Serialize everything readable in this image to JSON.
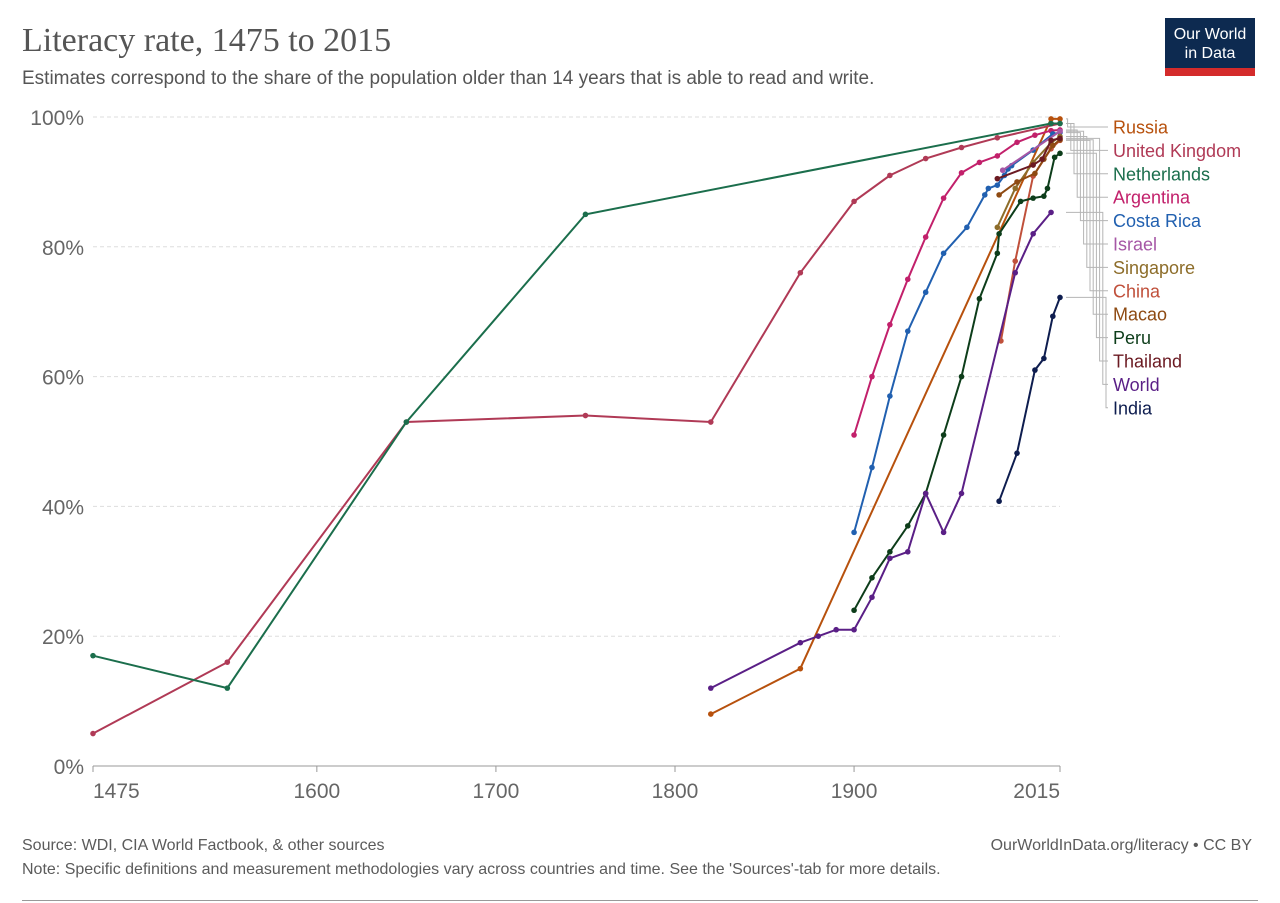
{
  "header": {
    "title": "Literacy rate, 1475 to 2015",
    "subtitle": "Estimates correspond to the share of the population older than 14 years that is able to read and write.",
    "logo_line1": "Our World",
    "logo_line2": "in Data"
  },
  "footer": {
    "source": "Source: WDI, CIA World Factbook, & other sources",
    "note": "Note: Specific definitions and measurement methodologies vary across countries and time. See the 'Sources'-tab for more details.",
    "credit": "OurWorldInData.org/literacy • CC BY"
  },
  "chart_data": {
    "type": "line",
    "title": "Literacy rate, 1475 to 2015",
    "xlabel": "",
    "ylabel": "",
    "xlim": [
      1475,
      2015
    ],
    "ylim": [
      0,
      100
    ],
    "x_ticks": [
      1475,
      1600,
      1700,
      1800,
      1900,
      2015
    ],
    "y_ticks": [
      0,
      20,
      40,
      60,
      80,
      100
    ],
    "y_tick_suffix": "%",
    "grid": "horizontal dashed",
    "legend": "right, labels at line ends",
    "series": [
      {
        "name": "Russia",
        "color": "#b7510d",
        "points": [
          [
            1820,
            8
          ],
          [
            1870,
            15
          ],
          [
            2010,
            99.7
          ],
          [
            2015,
            99.7
          ]
        ]
      },
      {
        "name": "United Kingdom",
        "color": "#b03a56",
        "points": [
          [
            1475,
            5
          ],
          [
            1550,
            16
          ],
          [
            1650,
            53
          ],
          [
            1750,
            54
          ],
          [
            1820,
            53
          ],
          [
            1870,
            76
          ],
          [
            1900,
            87
          ],
          [
            1920,
            91
          ],
          [
            1940,
            93.6
          ],
          [
            1960,
            95.3
          ],
          [
            1980,
            96.8
          ],
          [
            2015,
            99
          ]
        ]
      },
      {
        "name": "Netherlands",
        "color": "#1b6e4c",
        "points": [
          [
            1475,
            17
          ],
          [
            1550,
            12
          ],
          [
            1650,
            53
          ],
          [
            1750,
            85
          ],
          [
            2010,
            99
          ],
          [
            2015,
            99
          ]
        ]
      },
      {
        "name": "Argentina",
        "color": "#c2206b",
        "points": [
          [
            1900,
            51
          ],
          [
            1910,
            60
          ],
          [
            1920,
            68
          ],
          [
            1930,
            75
          ],
          [
            1940,
            81.5
          ],
          [
            1950,
            87.5
          ],
          [
            1960,
            91.4
          ],
          [
            1970,
            93
          ],
          [
            1980,
            94
          ],
          [
            1991,
            96.1
          ],
          [
            2001,
            97.2
          ],
          [
            2010,
            97.9
          ],
          [
            2015,
            98
          ]
        ]
      },
      {
        "name": "Costa Rica",
        "color": "#2160b0",
        "points": [
          [
            1900,
            36
          ],
          [
            1910,
            46
          ],
          [
            1920,
            57
          ],
          [
            1930,
            67
          ],
          [
            1940,
            73
          ],
          [
            1950,
            79
          ],
          [
            1963,
            83
          ],
          [
            1973,
            88
          ],
          [
            1975,
            89
          ],
          [
            1980,
            89.5
          ],
          [
            1984,
            91
          ],
          [
            1986,
            92
          ],
          [
            1988,
            92.5
          ],
          [
            2000,
            94.9
          ],
          [
            2011,
            97.4
          ],
          [
            2015,
            97.6
          ]
        ]
      },
      {
        "name": "Israel",
        "color": "#a657a6",
        "points": [
          [
            1983,
            91.8
          ],
          [
            2015,
            97.8
          ]
        ]
      },
      {
        "name": "Singapore",
        "color": "#8d6d2a",
        "points": [
          [
            1980,
            83
          ],
          [
            1990,
            89
          ],
          [
            2000,
            93
          ],
          [
            2010,
            96
          ],
          [
            2015,
            97
          ]
        ]
      },
      {
        "name": "China",
        "color": "#c0503b",
        "points": [
          [
            1982,
            65.5
          ],
          [
            1990,
            77.8
          ],
          [
            2000,
            90.9
          ],
          [
            2010,
            95.1
          ],
          [
            2015,
            96.4
          ]
        ]
      },
      {
        "name": "Macao",
        "color": "#8e4a12",
        "points": [
          [
            1981,
            88
          ],
          [
            1991,
            90
          ],
          [
            2001,
            91.3
          ],
          [
            2006,
            93.5
          ],
          [
            2011,
            95.6
          ],
          [
            2015,
            96.5
          ]
        ]
      },
      {
        "name": "Peru",
        "color": "#0d3d1a",
        "points": [
          [
            1900,
            24
          ],
          [
            1910,
            29
          ],
          [
            1920,
            33
          ],
          [
            1930,
            37
          ],
          [
            1940,
            42
          ],
          [
            1950,
            51
          ],
          [
            1960,
            60
          ],
          [
            1970,
            72
          ],
          [
            1980,
            79
          ],
          [
            1981,
            82
          ],
          [
            1993,
            87
          ],
          [
            2000,
            87.5
          ],
          [
            2006,
            87.8
          ],
          [
            2008,
            89
          ],
          [
            2012,
            93.8
          ],
          [
            2015,
            94.4
          ]
        ]
      },
      {
        "name": "Thailand",
        "color": "#6b1a22",
        "points": [
          [
            1980,
            90.5
          ],
          [
            2000,
            92.6
          ],
          [
            2005,
            93.5
          ],
          [
            2010,
            96.4
          ],
          [
            2015,
            96.7
          ]
        ]
      },
      {
        "name": "World",
        "color": "#5a1f86",
        "points": [
          [
            1820,
            12
          ],
          [
            1870,
            19
          ],
          [
            1880,
            20
          ],
          [
            1890,
            21
          ],
          [
            1900,
            21
          ],
          [
            1910,
            26
          ],
          [
            1920,
            32
          ],
          [
            1930,
            33
          ],
          [
            1940,
            42
          ],
          [
            1950,
            36
          ],
          [
            1960,
            42
          ],
          [
            1990,
            76
          ],
          [
            2000,
            82
          ],
          [
            2010,
            85.3
          ]
        ]
      },
      {
        "name": "India",
        "color": "#0e1d4f",
        "points": [
          [
            1981,
            40.8
          ],
          [
            1991,
            48.2
          ],
          [
            2001,
            61
          ],
          [
            2006,
            62.8
          ],
          [
            2011,
            69.3
          ],
          [
            2015,
            72.2
          ]
        ]
      }
    ]
  }
}
